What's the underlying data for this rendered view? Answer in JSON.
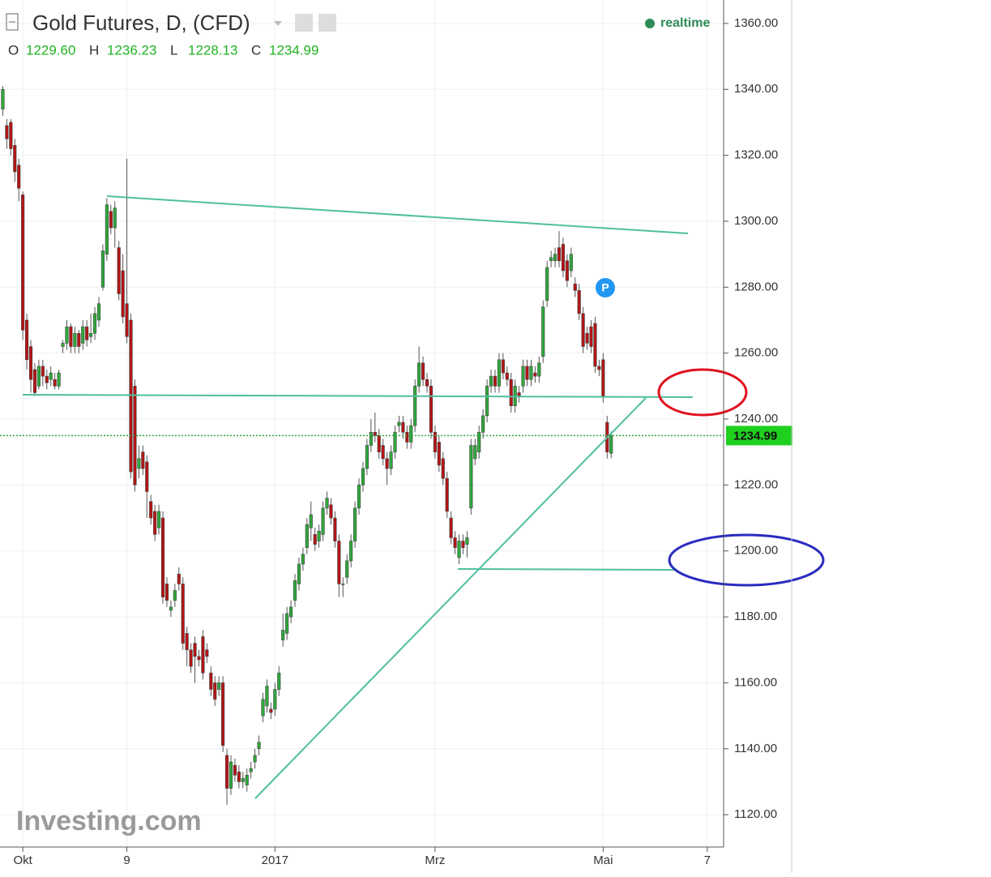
{
  "chart_data": {
    "type": "candlestick",
    "title": "Gold Futures, D, (CFD)",
    "status": "realtime",
    "watermark": "Investing.com",
    "badge": "P",
    "ohlc_header": [
      {
        "key": "O",
        "value": "1229.60"
      },
      {
        "key": "H",
        "value": "1236.23"
      },
      {
        "key": "L",
        "value": "1228.13"
      },
      {
        "key": "C",
        "value": "1234.99"
      }
    ],
    "last_price": {
      "value": 1234.99,
      "label": "1234.99"
    },
    "up_color": "#2ea83a",
    "down_color": "#b41414",
    "xlim": [
      -0.7,
      180.1
    ],
    "xticks": [
      {
        "value": 5,
        "label": "Okt"
      },
      {
        "value": 31,
        "label": "9"
      },
      {
        "value": 68,
        "label": "2017"
      },
      {
        "value": 108,
        "label": "Mrz"
      },
      {
        "value": 150,
        "label": "Mai"
      },
      {
        "value": 176,
        "label": "7"
      }
    ],
    "ylim": [
      1110.2,
      1367.1
    ],
    "yticks": [
      {
        "value": 1120,
        "label": "1120.00"
      },
      {
        "value": 1140,
        "label": "1140.00"
      },
      {
        "value": 1160,
        "label": "1160.00"
      },
      {
        "value": 1180,
        "label": "1180.00"
      },
      {
        "value": 1200,
        "label": "1200.00"
      },
      {
        "value": 1220,
        "label": "1220.00"
      },
      {
        "value": 1240,
        "label": "1240.00"
      },
      {
        "value": 1260,
        "label": "1260.00"
      },
      {
        "value": 1280,
        "label": "1280.00"
      },
      {
        "value": 1300,
        "label": "1300.00"
      },
      {
        "value": 1320,
        "label": "1320.00"
      },
      {
        "value": 1340,
        "label": "1340.00"
      },
      {
        "value": 1360,
        "label": "1360.00"
      }
    ],
    "grid": true,
    "open": [
      1334,
      1329,
      1330,
      1323,
      1317,
      1308,
      1270,
      1262,
      1255,
      1250,
      1256,
      1253,
      1252,
      1252,
      1250,
      1262,
      1263,
      1268,
      1262,
      1266,
      1263,
      1268,
      1265,
      1266,
      1270,
      1280,
      1290,
      1303,
      1298,
      1292,
      1285,
      1275,
      1270,
      1250,
      1225,
      1230,
      1227,
      1215,
      1212,
      1207,
      1210,
      1190,
      1182,
      1185,
      1193,
      1190,
      1175,
      1170,
      1172,
      1168,
      1174,
      1170,
      1163,
      1160,
      1158,
      1160,
      1138,
      1128,
      1135,
      1133,
      1130,
      1129,
      1133,
      1136,
      1140,
      1150,
      1153,
      1152,
      1152,
      1158,
      1173,
      1175,
      1180,
      1185,
      1190,
      1196,
      1201,
      1207,
      1205,
      1203,
      1205,
      1213,
      1214,
      1210,
      1203,
      1190,
      1192,
      1197,
      1203,
      1213,
      1220,
      1225,
      1232,
      1236,
      1235,
      1232,
      1228,
      1225,
      1230,
      1238,
      1239,
      1236,
      1233,
      1238,
      1250,
      1257,
      1252,
      1250,
      1236,
      1233,
      1228,
      1222,
      1210,
      1204,
      1198,
      1203,
      1202,
      1213,
      1228,
      1230,
      1236,
      1241,
      1250,
      1253,
      1250,
      1258,
      1254,
      1252,
      1244,
      1248,
      1250,
      1256,
      1252,
      1254,
      1253,
      1259,
      1276,
      1288,
      1288,
      1292,
      1293,
      1288,
      1285,
      1281,
      1279,
      1272,
      1266,
      1268,
      1269,
      1256,
      1258,
      1239,
      1229.6
    ],
    "high": [
      1341,
      1331,
      1331,
      1325,
      1319,
      1309,
      1272,
      1264,
      1257,
      1258,
      1258,
      1255,
      1256,
      1254,
      1255,
      1264,
      1270,
      1269,
      1268,
      1267,
      1270,
      1270,
      1272,
      1274,
      1277,
      1293,
      1307,
      1305,
      1306,
      1294,
      1290,
      1319,
      1272,
      1252,
      1232,
      1232,
      1229,
      1217,
      1214,
      1214,
      1212,
      1192,
      1185,
      1190,
      1195,
      1192,
      1177,
      1172,
      1174,
      1170,
      1176,
      1172,
      1165,
      1162,
      1162,
      1162,
      1140,
      1138,
      1137,
      1135,
      1133,
      1134,
      1136,
      1140,
      1144,
      1157,
      1161,
      1154,
      1160,
      1165,
      1181,
      1183,
      1185,
      1193,
      1198,
      1201,
      1210,
      1215,
      1207,
      1208,
      1215,
      1218,
      1216,
      1212,
      1205,
      1192,
      1199,
      1205,
      1215,
      1222,
      1227,
      1234,
      1240,
      1242,
      1237,
      1234,
      1230,
      1232,
      1238,
      1241,
      1241,
      1238,
      1240,
      1252,
      1262,
      1259,
      1254,
      1252,
      1238,
      1235,
      1230,
      1224,
      1212,
      1206,
      1205,
      1205,
      1206,
      1234,
      1234,
      1238,
      1243,
      1252,
      1255,
      1255,
      1260,
      1260,
      1256,
      1254,
      1252,
      1250,
      1258,
      1258,
      1258,
      1256,
      1259,
      1276,
      1288,
      1291,
      1292,
      1297,
      1295,
      1290,
      1292,
      1283,
      1281,
      1274,
      1268,
      1270,
      1271,
      1258,
      1260,
      1241,
      1236.23
    ],
    "low": [
      1332,
      1322,
      1320,
      1312,
      1306,
      1264,
      1255,
      1248,
      1247,
      1249,
      1250,
      1249,
      1250,
      1249,
      1249,
      1260,
      1261,
      1260,
      1260,
      1260,
      1261,
      1262,
      1263,
      1264,
      1268,
      1279,
      1288,
      1296,
      1292,
      1276,
      1269,
      1263,
      1222,
      1218,
      1222,
      1223,
      1210,
      1208,
      1203,
      1205,
      1184,
      1183,
      1180,
      1183,
      1188,
      1170,
      1165,
      1163,
      1160,
      1165,
      1161,
      1166,
      1156,
      1153,
      1156,
      1139,
      1123,
      1126,
      1130,
      1128,
      1128,
      1127,
      1131,
      1134,
      1138,
      1148,
      1151,
      1149,
      1150,
      1156,
      1171,
      1173,
      1178,
      1183,
      1188,
      1194,
      1199,
      1203,
      1200,
      1201,
      1203,
      1211,
      1208,
      1201,
      1186,
      1186,
      1190,
      1195,
      1201,
      1211,
      1218,
      1223,
      1230,
      1233,
      1228,
      1226,
      1220,
      1223,
      1228,
      1236,
      1234,
      1231,
      1231,
      1236,
      1248,
      1250,
      1248,
      1234,
      1228,
      1224,
      1220,
      1210,
      1202,
      1199,
      1196,
      1199,
      1198,
      1211,
      1226,
      1228,
      1234,
      1239,
      1248,
      1248,
      1248,
      1252,
      1250,
      1242,
      1242,
      1245,
      1248,
      1250,
      1250,
      1251,
      1251,
      1257,
      1274,
      1286,
      1286,
      1286,
      1283,
      1280,
      1283,
      1277,
      1270,
      1260,
      1261,
      1260,
      1254,
      1253,
      1245,
      1228,
      1228.13
    ],
    "close": [
      1340,
      1325,
      1322,
      1315,
      1310,
      1267,
      1258,
      1252,
      1248,
      1256,
      1253,
      1251,
      1254,
      1250,
      1254,
      1263,
      1268,
      1262,
      1266,
      1262,
      1268,
      1264,
      1266,
      1272,
      1275,
      1291,
      1305,
      1298,
      1304,
      1278,
      1271,
      1265,
      1224,
      1220,
      1228,
      1225,
      1218,
      1210,
      1205,
      1212,
      1186,
      1185,
      1183,
      1188,
      1190,
      1172,
      1170,
      1165,
      1168,
      1167,
      1163,
      1168,
      1158,
      1155,
      1160,
      1141,
      1128,
      1136,
      1132,
      1130,
      1131,
      1132,
      1134,
      1138,
      1142,
      1155,
      1159,
      1151,
      1158,
      1163,
      1176,
      1181,
      1183,
      1191,
      1196,
      1199,
      1208,
      1211,
      1202,
      1206,
      1213,
      1216,
      1210,
      1203,
      1190,
      1190,
      1197,
      1203,
      1213,
      1220,
      1225,
      1232,
      1236,
      1235,
      1230,
      1228,
      1225,
      1230,
      1236,
      1239,
      1236,
      1233,
      1238,
      1250,
      1257,
      1252,
      1250,
      1236,
      1230,
      1226,
      1222,
      1212,
      1204,
      1201,
      1203,
      1201,
      1204,
      1232,
      1232,
      1236,
      1241,
      1250,
      1253,
      1250,
      1258,
      1254,
      1252,
      1244,
      1250,
      1247,
      1256,
      1252,
      1256,
      1253,
      1257,
      1274,
      1286,
      1289,
      1290,
      1288,
      1285,
      1282,
      1290,
      1279,
      1272,
      1262,
      1263,
      1262,
      1256,
      1255,
      1247,
      1230,
      1234.99
    ]
  }
}
